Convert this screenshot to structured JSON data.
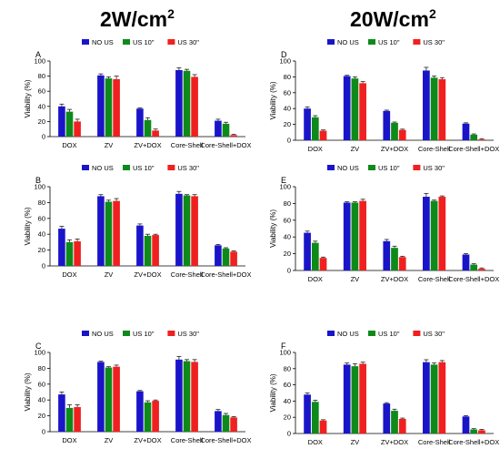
{
  "columns": {
    "left": {
      "main": "2W/cm",
      "sup": "2"
    },
    "right": {
      "main": "20W/cm",
      "sup": "2"
    }
  },
  "colors": {
    "NO US": "#1a14c9",
    "US 10\"": "#0e8a1a",
    "US 30\"": "#f02020"
  },
  "chart_data": [
    {
      "panel": "A",
      "type": "bar",
      "ylabel": "Viability (%)",
      "ylim": [
        0,
        100
      ],
      "yticks": [
        0,
        20,
        40,
        60,
        80,
        100
      ],
      "categories": [
        "DOX",
        "ZV",
        "ZV+DOX",
        "Core-Shell",
        "Core-Shell+DOX"
      ],
      "series": [
        {
          "name": "NO US",
          "values": [
            40,
            81,
            37,
            88,
            21
          ],
          "errors": [
            3,
            2,
            1,
            3,
            2
          ]
        },
        {
          "name": "US 10\"",
          "values": [
            33,
            77,
            22,
            87,
            17
          ],
          "errors": [
            3,
            2,
            3,
            2,
            2
          ]
        },
        {
          "name": "US 30\"",
          "values": [
            20,
            76,
            8,
            79,
            2
          ],
          "errors": [
            3,
            4,
            2,
            3,
            1
          ]
        }
      ]
    },
    {
      "panel": "D",
      "type": "bar",
      "ylabel": "Viability (%)",
      "ylim": [
        0,
        100
      ],
      "yticks": [
        0,
        20,
        40,
        60,
        80,
        100
      ],
      "categories": [
        "DOX",
        "ZV",
        "ZV+DOX",
        "Core-Shell",
        "Core-Shell+DOX"
      ],
      "series": [
        {
          "name": "NO US",
          "values": [
            40,
            81,
            37,
            88,
            21
          ],
          "errors": [
            2,
            1,
            1,
            4,
            1
          ]
        },
        {
          "name": "US 10\"",
          "values": [
            29,
            78,
            22,
            79,
            7
          ],
          "errors": [
            2,
            2,
            1,
            2,
            1
          ]
        },
        {
          "name": "US 30\"",
          "values": [
            12,
            72,
            13,
            77,
            1
          ],
          "errors": [
            1,
            2,
            1,
            2,
            1
          ]
        }
      ]
    },
    {
      "panel": "B",
      "type": "bar",
      "ylabel": "Viability (%)",
      "ylim": [
        0,
        100
      ],
      "yticks": [
        0,
        20,
        40,
        60,
        80,
        100
      ],
      "categories": [
        "DOX",
        "ZV",
        "ZV+DOX",
        "Core-Shell",
        "Core-Shell+DOX"
      ],
      "series": [
        {
          "name": "NO US",
          "values": [
            47,
            88,
            51,
            91,
            26
          ],
          "errors": [
            3,
            2,
            2,
            3,
            1
          ]
        },
        {
          "name": "US 10\"",
          "values": [
            30,
            81,
            38,
            89,
            22
          ],
          "errors": [
            3,
            2,
            2,
            1,
            1
          ]
        },
        {
          "name": "US 30\"",
          "values": [
            31,
            82,
            39,
            88,
            18
          ],
          "errors": [
            3,
            3,
            1,
            2,
            1
          ]
        }
      ]
    },
    {
      "panel": "E",
      "type": "bar",
      "ylabel": "Viability (%)",
      "ylim": [
        0,
        100
      ],
      "yticks": [
        0,
        20,
        40,
        60,
        80,
        100
      ],
      "categories": [
        "DOX",
        "ZV",
        "ZV+DOX",
        "Core-Shell",
        "Core-Shell+DOX"
      ],
      "series": [
        {
          "name": "NO US",
          "values": [
            45,
            81,
            35,
            88,
            19
          ],
          "errors": [
            2,
            1,
            2,
            4,
            1
          ]
        },
        {
          "name": "US 10\"",
          "values": [
            33,
            81,
            27,
            83,
            7
          ],
          "errors": [
            2,
            1,
            2,
            1,
            1
          ]
        },
        {
          "name": "US 30\"",
          "values": [
            15,
            83,
            16,
            88,
            2
          ],
          "errors": [
            1,
            2,
            1,
            1,
            1
          ]
        }
      ]
    },
    {
      "panel": "C",
      "type": "bar",
      "ylabel": "Viability (%)",
      "ylim": [
        0,
        100
      ],
      "yticks": [
        0,
        20,
        40,
        60,
        80,
        100
      ],
      "categories": [
        "DOX",
        "ZV",
        "ZV+DOX",
        "Core-Shell",
        "Core-Shell+DOX"
      ],
      "series": [
        {
          "name": "NO US",
          "values": [
            47,
            88,
            51,
            91,
            26
          ],
          "errors": [
            3,
            1,
            1,
            4,
            2
          ]
        },
        {
          "name": "US 10\"",
          "values": [
            30,
            81,
            37,
            89,
            21
          ],
          "errors": [
            4,
            1,
            2,
            2,
            2
          ]
        },
        {
          "name": "US 30\"",
          "values": [
            31,
            82,
            39,
            88,
            18
          ],
          "errors": [
            3,
            2,
            1,
            3,
            1
          ]
        }
      ]
    },
    {
      "panel": "F",
      "type": "bar",
      "ylabel": "Viability (%)",
      "ylim": [
        0,
        100
      ],
      "yticks": [
        0,
        20,
        40,
        60,
        80,
        100
      ],
      "categories": [
        "DOX",
        "ZV",
        "ZV+DOX",
        "Core-Shell",
        "Core-Shell+DOX"
      ],
      "series": [
        {
          "name": "NO US",
          "values": [
            48,
            85,
            37,
            88,
            21
          ],
          "errors": [
            2,
            2,
            1,
            3,
            1
          ]
        },
        {
          "name": "US 10\"",
          "values": [
            39,
            83,
            28,
            85,
            5
          ],
          "errors": [
            2,
            3,
            2,
            2,
            1
          ]
        },
        {
          "name": "US 30\"",
          "values": [
            16,
            86,
            18,
            88,
            4
          ],
          "errors": [
            1,
            2,
            1,
            2,
            1
          ]
        }
      ]
    }
  ]
}
